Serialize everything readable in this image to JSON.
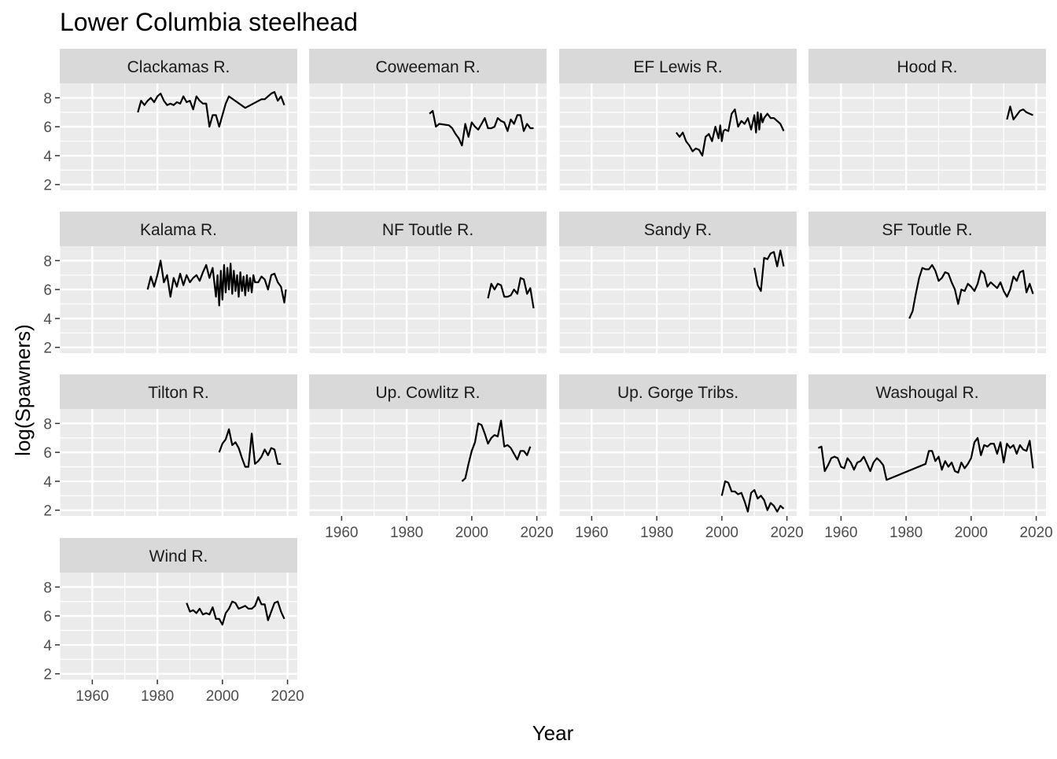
{
  "chart_data": {
    "type": "line",
    "title": "Lower Columbia steelhead",
    "xlabel": "Year",
    "ylabel": "log(Spawners)",
    "xlim": [
      1950,
      2023
    ],
    "ylim": [
      1.6,
      9.0
    ],
    "x_ticks": [
      1960,
      1980,
      2000,
      2020
    ],
    "y_ticks": [
      2,
      4,
      6,
      8
    ],
    "grid": true,
    "facets": [
      {
        "name": "Clackamas R.",
        "x": [
          1974,
          1975,
          1976,
          1977,
          1978,
          1979,
          1980,
          1981,
          1982,
          1983,
          1984,
          1985,
          1986,
          1987,
          1988,
          1989,
          1990,
          1991,
          1992,
          1993,
          1994,
          1995,
          1996,
          1997,
          1998,
          1999,
          2000,
          2001,
          2002,
          2007,
          2012,
          2013,
          2014,
          2015,
          2016,
          2017,
          2018,
          2019
        ],
        "y": [
          7.0,
          7.8,
          7.5,
          7.8,
          8.0,
          7.7,
          8.1,
          8.3,
          7.8,
          7.5,
          7.6,
          7.5,
          7.7,
          7.6,
          8.1,
          7.7,
          7.8,
          7.2,
          8.1,
          7.8,
          7.6,
          7.6,
          6.0,
          6.8,
          6.8,
          6.0,
          6.8,
          7.6,
          8.1,
          7.3,
          7.9,
          7.9,
          8.1,
          8.3,
          8.4,
          7.8,
          8.1,
          7.5
        ]
      },
      {
        "name": "Coweeman R.",
        "x": [
          1987,
          1988,
          1989,
          1990,
          1993,
          1994,
          1995,
          1996,
          1997,
          1998,
          1999,
          2000,
          2001,
          2002,
          2003,
          2004,
          2005,
          2006,
          2007,
          2008,
          2009,
          2010,
          2011,
          2012,
          2013,
          2014,
          2015,
          2016,
          2017,
          2018,
          2019
        ],
        "y": [
          6.9,
          7.1,
          6.0,
          6.2,
          6.1,
          5.9,
          5.5,
          5.2,
          4.7,
          6.2,
          5.3,
          6.3,
          6.0,
          5.8,
          6.2,
          6.6,
          5.9,
          5.9,
          6.0,
          6.6,
          6.4,
          6.3,
          5.7,
          6.5,
          6.2,
          6.8,
          6.8,
          5.7,
          6.2,
          5.9,
          5.9
        ]
      },
      {
        "name": "EF Lewis R.",
        "x": [
          1986,
          1987,
          1988,
          1989,
          1990,
          1991,
          1992,
          1993,
          1994,
          1995,
          1996,
          1997,
          1998,
          1999,
          1999.5,
          2000,
          2000.5,
          2001,
          2002,
          2003,
          2004,
          2005,
          2006,
          2007,
          2008,
          2009,
          2010,
          2010.5,
          2011,
          2011.5,
          2012,
          2012.5,
          2013,
          2014,
          2015,
          2016,
          2017,
          2018,
          2019
        ],
        "y": [
          5.6,
          5.3,
          5.6,
          5.0,
          4.7,
          4.3,
          4.5,
          4.4,
          4.0,
          5.3,
          5.5,
          5.0,
          6.0,
          5.2,
          6.1,
          5.0,
          5.7,
          5.8,
          5.7,
          6.9,
          7.2,
          6.0,
          6.4,
          6.2,
          6.6,
          5.8,
          6.8,
          5.6,
          7.0,
          5.8,
          6.9,
          6.3,
          6.6,
          6.9,
          6.6,
          6.6,
          6.4,
          6.2,
          5.7
        ]
      },
      {
        "name": "Hood R.",
        "x": [
          2011,
          2012,
          2013,
          2014,
          2015,
          2016,
          2017,
          2018,
          2019
        ],
        "y": [
          6.5,
          7.4,
          6.5,
          6.8,
          7.1,
          7.2,
          7.0,
          6.9,
          6.8
        ]
      },
      {
        "name": "Kalama R.",
        "x": [
          1977,
          1978,
          1979,
          1980,
          1981,
          1982,
          1983,
          1984,
          1985,
          1986,
          1987,
          1988,
          1989,
          1990,
          1991,
          1992,
          1993,
          1994,
          1995,
          1996,
          1997,
          1998,
          1998.5,
          1999,
          1999.5,
          2000,
          2000.5,
          2001,
          2001.5,
          2002,
          2002.5,
          2003,
          2003.5,
          2004,
          2004.5,
          2005,
          2005.5,
          2006,
          2006.5,
          2007,
          2007.5,
          2008,
          2008.5,
          2009,
          2009.5,
          2010,
          2011,
          2012,
          2013,
          2014,
          2015,
          2016,
          2017,
          2018,
          2019,
          2019.5
        ],
        "y": [
          6.0,
          6.9,
          6.2,
          7.0,
          8.0,
          6.5,
          7.0,
          5.5,
          6.8,
          6.2,
          7.1,
          6.3,
          7.0,
          6.5,
          6.8,
          7.0,
          6.6,
          7.2,
          7.7,
          6.8,
          7.5,
          5.5,
          7.0,
          4.9,
          7.3,
          5.3,
          7.7,
          5.8,
          7.5,
          6.0,
          7.8,
          5.7,
          7.3,
          5.9,
          7.0,
          5.5,
          7.2,
          5.9,
          6.9,
          5.6,
          7.0,
          5.9,
          6.8,
          5.8,
          7.0,
          6.5,
          6.5,
          6.9,
          6.7,
          6.0,
          7.0,
          7.1,
          6.5,
          6.2,
          5.1,
          6.0
        ]
      },
      {
        "name": "NF Toutle R.",
        "x": [
          2005,
          2006,
          2007,
          2008,
          2009,
          2010,
          2011,
          2012,
          2013,
          2014,
          2015,
          2016,
          2017,
          2018,
          2019
        ],
        "y": [
          5.4,
          6.4,
          6.0,
          6.4,
          6.3,
          5.5,
          5.5,
          5.6,
          6.0,
          5.7,
          6.8,
          6.7,
          5.7,
          6.1,
          4.7
        ]
      },
      {
        "name": "Sandy R.",
        "x": [
          2010,
          2011,
          2012,
          2013,
          2014,
          2015,
          2016,
          2017,
          2018,
          2019
        ],
        "y": [
          7.5,
          6.3,
          5.9,
          8.2,
          8.1,
          8.5,
          8.6,
          7.6,
          8.7,
          7.6
        ]
      },
      {
        "name": "SF Toutle R.",
        "x": [
          1981,
          1982,
          1983,
          1984,
          1985,
          1986,
          1987,
          1988,
          1989,
          1990,
          1991,
          1992,
          1993,
          1994,
          1995,
          1996,
          1997,
          1998,
          1999,
          2000,
          2001,
          2002,
          2003,
          2004,
          2005,
          2006,
          2007,
          2008,
          2009,
          2010,
          2011,
          2012,
          2013,
          2014,
          2015,
          2016,
          2017,
          2018,
          2019
        ],
        "y": [
          4.0,
          4.5,
          5.7,
          6.8,
          7.5,
          7.4,
          7.4,
          7.7,
          7.3,
          6.6,
          6.8,
          7.2,
          7.1,
          6.5,
          6.0,
          5.0,
          6.0,
          5.9,
          6.4,
          6.2,
          5.9,
          6.4,
          7.3,
          7.1,
          6.2,
          6.5,
          6.3,
          6.1,
          6.5,
          5.9,
          5.5,
          6.0,
          6.9,
          6.6,
          7.2,
          7.3,
          5.8,
          6.4,
          5.7
        ]
      },
      {
        "name": "Tilton R.",
        "x": [
          1999,
          2000,
          2001,
          2002,
          2003,
          2004,
          2005,
          2006,
          2007,
          2008,
          2009,
          2010,
          2011,
          2012,
          2013,
          2014,
          2015,
          2016,
          2017,
          2018
        ],
        "y": [
          6.0,
          6.6,
          6.9,
          7.6,
          6.5,
          6.7,
          6.3,
          5.6,
          5.0,
          5.0,
          7.3,
          5.2,
          5.4,
          5.7,
          6.2,
          5.8,
          6.3,
          6.2,
          5.2,
          5.2
        ]
      },
      {
        "name": "Up. Cowlitz R.",
        "x": [
          1997,
          1998,
          1999,
          2000,
          2001,
          2002,
          2003,
          2004,
          2005,
          2006,
          2007,
          2008,
          2009,
          2010,
          2011,
          2012,
          2013,
          2014,
          2015,
          2016,
          2017,
          2018
        ],
        "y": [
          4.0,
          4.2,
          5.2,
          6.1,
          6.7,
          8.0,
          7.9,
          7.3,
          6.6,
          7.0,
          7.2,
          7.1,
          8.2,
          6.4,
          6.5,
          6.3,
          5.9,
          5.5,
          6.1,
          6.1,
          5.8,
          6.4
        ]
      },
      {
        "name": "Up. Gorge Tribs.",
        "x": [
          2000,
          2001,
          2002,
          2003,
          2004,
          2005,
          2006,
          2007,
          2008,
          2009,
          2010,
          2011,
          2012,
          2013,
          2014,
          2015,
          2016,
          2017,
          2018,
          2019
        ],
        "y": [
          3.0,
          4.0,
          3.9,
          3.3,
          3.3,
          3.1,
          3.2,
          2.6,
          1.9,
          3.2,
          3.4,
          2.8,
          3.0,
          2.7,
          2.0,
          2.5,
          2.3,
          1.9,
          2.3,
          2.1
        ]
      },
      {
        "name": "Washougal R.",
        "x": [
          1953,
          1954,
          1955,
          1956,
          1957,
          1958,
          1959,
          1960,
          1961,
          1962,
          1963,
          1964,
          1965,
          1966,
          1967,
          1968,
          1969,
          1970,
          1971,
          1972,
          1973,
          1974,
          1986,
          1987,
          1988,
          1989,
          1990,
          1991,
          1992,
          1993,
          1994,
          1995,
          1996,
          1997,
          1998,
          1999,
          2000,
          2001,
          2002,
          2003,
          2004,
          2005,
          2006,
          2007,
          2008,
          2009,
          2010,
          2011,
          2012,
          2013,
          2014,
          2015,
          2016,
          2017,
          2018,
          2019
        ],
        "y": [
          6.3,
          6.4,
          4.7,
          5.1,
          5.6,
          5.7,
          5.6,
          5.0,
          4.9,
          5.6,
          5.3,
          4.8,
          5.3,
          5.4,
          5.7,
          5.2,
          4.7,
          5.3,
          5.6,
          5.4,
          5.1,
          4.1,
          5.2,
          6.1,
          6.1,
          5.4,
          5.7,
          4.8,
          5.4,
          5.0,
          5.3,
          4.7,
          4.6,
          5.3,
          4.9,
          5.2,
          5.6,
          6.7,
          7.0,
          5.8,
          6.5,
          6.4,
          6.6,
          6.6,
          5.9,
          6.7,
          5.3,
          6.6,
          6.3,
          6.5,
          5.9,
          6.5,
          6.2,
          6.1,
          6.8,
          4.9
        ]
      },
      {
        "name": "Wind R.",
        "x": [
          1989,
          1990,
          1991,
          1992,
          1993,
          1994,
          1995,
          1996,
          1997,
          1998,
          1999,
          2000,
          2001,
          2002,
          2003,
          2004,
          2005,
          2006,
          2007,
          2008,
          2009,
          2010,
          2011,
          2012,
          2013,
          2014,
          2015,
          2016,
          2017,
          2018,
          2019
        ],
        "y": [
          6.9,
          6.3,
          6.4,
          6.2,
          6.5,
          6.1,
          6.2,
          6.1,
          6.6,
          5.8,
          5.8,
          5.4,
          6.2,
          6.5,
          7.0,
          6.9,
          6.5,
          6.6,
          6.7,
          6.5,
          6.5,
          6.7,
          7.3,
          6.8,
          6.8,
          5.7,
          6.3,
          6.9,
          7.0,
          6.3,
          5.8
        ]
      }
    ]
  }
}
